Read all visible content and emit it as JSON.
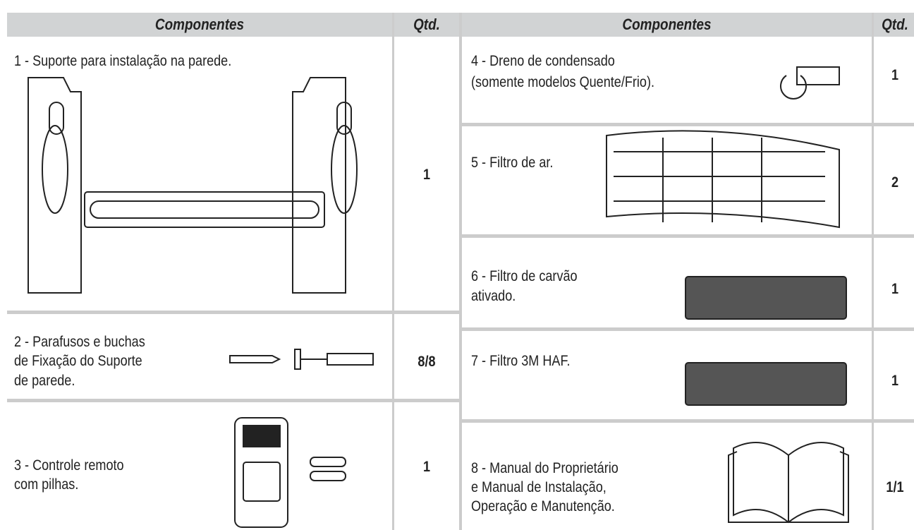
{
  "left_table": {
    "header": [
      "Componentes",
      "Qtd."
    ],
    "rows": [
      {
        "component": [
          "1 - Suporte para  instalação na parede."
        ],
        "qty": "1"
      },
      {
        "component": [
          "2 - Parafusos e buchas",
          "de Fixação do Suporte",
          "de parede."
        ],
        "qty": "8/8"
      },
      {
        "component": [
          "3 - Controle remoto",
          "com pilhas."
        ],
        "qty": "1"
      }
    ]
  },
  "right_table": {
    "header": [
      "Componentes",
      "Qtd."
    ],
    "rows": [
      {
        "component": [
          "4 - Dreno de condensado",
          "(somente modelos Quente/Frio)."
        ],
        "qty": "1"
      },
      {
        "component": [
          "5 - Filtro de ar."
        ],
        "qty": "2"
      },
      {
        "component": [
          "6 - Filtro de carvão",
          "ativado."
        ],
        "qty": "1"
      },
      {
        "component": [
          "7 - Filtro 3M HAF."
        ],
        "qty": "1"
      },
      {
        "component": [
          "8 - Manual do Proprietário",
          "e Manual de Instalação,",
          "Operação e Manutenção."
        ],
        "qty": "1/1"
      }
    ]
  }
}
